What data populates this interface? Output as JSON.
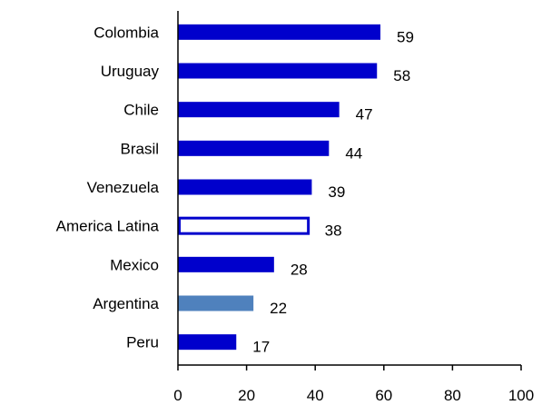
{
  "chart_data": {
    "type": "bar",
    "orientation": "horizontal",
    "categories": [
      "Colombia",
      "Uruguay",
      "Chile",
      "Brasil",
      "Venezuela",
      "America Latina",
      "Mexico",
      "Argentina",
      "Peru"
    ],
    "values": [
      59,
      58,
      47,
      44,
      39,
      38,
      28,
      22,
      17
    ],
    "value_labels": [
      "59",
      "58",
      "47",
      "44",
      "39",
      "38",
      "28",
      "22",
      "17"
    ],
    "bar_styles": [
      "solid",
      "solid",
      "solid",
      "solid",
      "solid",
      "outline",
      "solid",
      "highlight",
      "solid"
    ],
    "title": "",
    "xlabel": "",
    "ylabel": "",
    "xlim": [
      0,
      100
    ],
    "xticks": [
      0,
      20,
      40,
      60,
      80,
      100
    ],
    "xtick_labels": [
      "0",
      "20",
      "40",
      "60",
      "80",
      "100"
    ],
    "grid": false,
    "legend": "none",
    "colors": {
      "bar": "#0000CC",
      "highlight": "#4F81BD",
      "outline_fill": "#FFFFFF",
      "axis": "#000000"
    }
  }
}
